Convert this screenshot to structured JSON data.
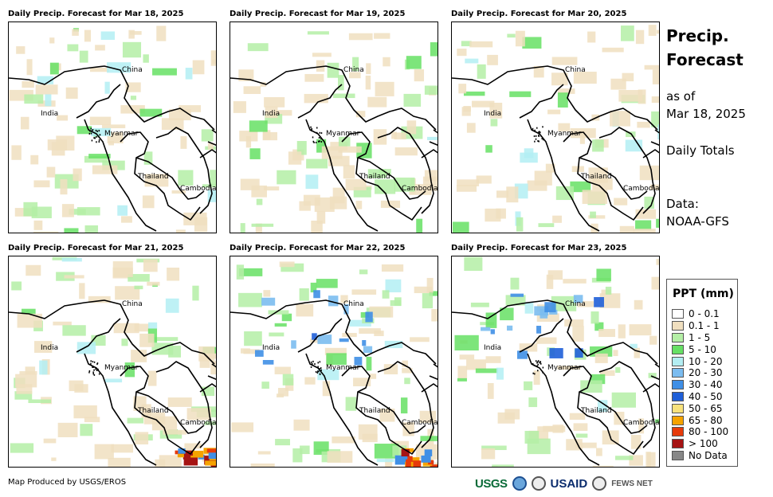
{
  "panels": [
    {
      "title": "Daily Precip. Forecast for Mar 18, 2025",
      "wet_level": 1
    },
    {
      "title": "Daily Precip. Forecast for Mar 19, 2025",
      "wet_level": 1
    },
    {
      "title": "Daily Precip. Forecast for Mar 20, 2025",
      "wet_level": 1
    },
    {
      "title": "Daily Precip. Forecast for Mar 21, 2025",
      "wet_level": 1
    },
    {
      "title": "Daily Precip. Forecast for Mar 22, 2025",
      "wet_level": 2
    },
    {
      "title": "Daily Precip. Forecast for Mar 23, 2025",
      "wet_level": 2
    }
  ],
  "map_labels": [
    "China",
    "India",
    "Myanmar",
    "Thailand",
    "Cambodia"
  ],
  "side": {
    "title_line1": "Precip.",
    "title_line2": "Forecast",
    "asof_line1": "as of",
    "asof_line2": "Mar 18, 2025",
    "totals": "Daily Totals",
    "data_line1": "Data:",
    "data_line2": "NOAA-GFS"
  },
  "legend": {
    "title": "PPT (mm)",
    "items": [
      {
        "label": "0 - 0.1",
        "color": "#ffffff"
      },
      {
        "label": "0.1 - 1",
        "color": "#f0dfbf"
      },
      {
        "label": "1 - 5",
        "color": "#b4efa6"
      },
      {
        "label": "5 - 10",
        "color": "#66e064"
      },
      {
        "label": "10 - 20",
        "color": "#b3eef3"
      },
      {
        "label": "20 - 30",
        "color": "#7bbcf0"
      },
      {
        "label": "30 - 40",
        "color": "#3f8fe6"
      },
      {
        "label": "40 - 50",
        "color": "#1f5fd8"
      },
      {
        "label": "50 - 65",
        "color": "#f8e27c"
      },
      {
        "label": "65 - 80",
        "color": "#f5a300"
      },
      {
        "label": "80 - 100",
        "color": "#e63a0a"
      },
      {
        "label": "> 100",
        "color": "#a61414"
      },
      {
        "label": "No Data",
        "color": "#888888"
      }
    ]
  },
  "footer": "Map Produced by USGS/EROS",
  "logos": {
    "usgs": "USGS",
    "usaid": "USAID",
    "fews": "FEWS NET"
  }
}
